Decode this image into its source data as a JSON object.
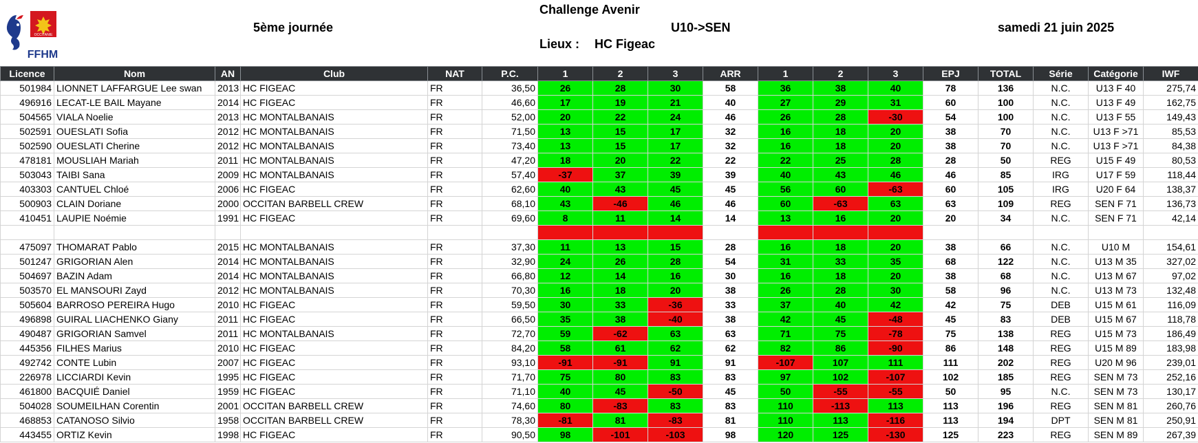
{
  "header": {
    "logo_text": "FFHM",
    "logo_region": "OCCITANIE",
    "title": "Challenge Avenir",
    "session": "5ème journée",
    "age_range": "U10->SEN",
    "date": "samedi 21 juin 2025",
    "place_label": "Lieux :",
    "place_value": "HC Figeac"
  },
  "table": {
    "columns": [
      "Licence",
      "Nom",
      "AN",
      "Club",
      "NAT",
      "P.C.",
      "1",
      "2",
      "3",
      "ARR",
      "1",
      "2",
      "3",
      "EPJ",
      "TOTAL",
      "Série",
      "Catégorie",
      "IWF"
    ],
    "rows": [
      {
        "licence": "501984",
        "nom": "LIONNET LAFFARGUE Lee swan",
        "an": "2013",
        "club": "HC FIGEAC",
        "nat": "FR",
        "pc": "36,50",
        "a1": {
          "v": "26",
          "ok": true
        },
        "a2": {
          "v": "28",
          "ok": true
        },
        "a3": {
          "v": "30",
          "ok": true
        },
        "arr": "58",
        "e1": {
          "v": "36",
          "ok": true
        },
        "e2": {
          "v": "38",
          "ok": true
        },
        "e3": {
          "v": "40",
          "ok": true
        },
        "epj": "78",
        "total": "136",
        "serie": "N.C.",
        "cat": "U13 F 40",
        "iwf": "275,74"
      },
      {
        "licence": "496916",
        "nom": "LECAT-LE BAIL Mayane",
        "an": "2014",
        "club": "HC FIGEAC",
        "nat": "FR",
        "pc": "46,60",
        "a1": {
          "v": "17",
          "ok": true
        },
        "a2": {
          "v": "19",
          "ok": true
        },
        "a3": {
          "v": "21",
          "ok": true
        },
        "arr": "40",
        "e1": {
          "v": "27",
          "ok": true
        },
        "e2": {
          "v": "29",
          "ok": true
        },
        "e3": {
          "v": "31",
          "ok": true
        },
        "epj": "60",
        "total": "100",
        "serie": "N.C.",
        "cat": "U13 F 49",
        "iwf": "162,75"
      },
      {
        "licence": "504565",
        "nom": "VIALA Noelie",
        "an": "2013",
        "club": "HC MONTALBANAIS",
        "nat": "FR",
        "pc": "52,00",
        "a1": {
          "v": "20",
          "ok": true
        },
        "a2": {
          "v": "22",
          "ok": true
        },
        "a3": {
          "v": "24",
          "ok": true
        },
        "arr": "46",
        "e1": {
          "v": "26",
          "ok": true
        },
        "e2": {
          "v": "28",
          "ok": true
        },
        "e3": {
          "v": "-30",
          "ok": false
        },
        "epj": "54",
        "total": "100",
        "serie": "N.C.",
        "cat": "U13 F 55",
        "iwf": "149,43"
      },
      {
        "licence": "502591",
        "nom": "OUESLATI Sofia",
        "an": "2012",
        "club": "HC MONTALBANAIS",
        "nat": "FR",
        "pc": "71,50",
        "a1": {
          "v": "13",
          "ok": true
        },
        "a2": {
          "v": "15",
          "ok": true
        },
        "a3": {
          "v": "17",
          "ok": true
        },
        "arr": "32",
        "e1": {
          "v": "16",
          "ok": true
        },
        "e2": {
          "v": "18",
          "ok": true
        },
        "e3": {
          "v": "20",
          "ok": true
        },
        "epj": "38",
        "total": "70",
        "serie": "N.C.",
        "cat": "U13 F >71",
        "iwf": "85,53"
      },
      {
        "licence": "502590",
        "nom": "OUESLATI Cherine",
        "an": "2012",
        "club": "HC MONTALBANAIS",
        "nat": "FR",
        "pc": "73,40",
        "a1": {
          "v": "13",
          "ok": true
        },
        "a2": {
          "v": "15",
          "ok": true
        },
        "a3": {
          "v": "17",
          "ok": true
        },
        "arr": "32",
        "e1": {
          "v": "16",
          "ok": true
        },
        "e2": {
          "v": "18",
          "ok": true
        },
        "e3": {
          "v": "20",
          "ok": true
        },
        "epj": "38",
        "total": "70",
        "serie": "N.C.",
        "cat": "U13 F >71",
        "iwf": "84,38"
      },
      {
        "licence": "478181",
        "nom": "MOUSLIAH Mariah",
        "an": "2011",
        "club": "HC MONTALBANAIS",
        "nat": "FR",
        "pc": "47,20",
        "a1": {
          "v": "18",
          "ok": true
        },
        "a2": {
          "v": "20",
          "ok": true
        },
        "a3": {
          "v": "22",
          "ok": true
        },
        "arr": "22",
        "e1": {
          "v": "22",
          "ok": true
        },
        "e2": {
          "v": "25",
          "ok": true
        },
        "e3": {
          "v": "28",
          "ok": true
        },
        "epj": "28",
        "total": "50",
        "serie": "REG",
        "cat": "U15 F 49",
        "iwf": "80,53"
      },
      {
        "licence": "503043",
        "nom": "TAIBI Sana",
        "an": "2009",
        "club": "HC MONTALBANAIS",
        "nat": "FR",
        "pc": "57,40",
        "a1": {
          "v": "-37",
          "ok": false
        },
        "a2": {
          "v": "37",
          "ok": true
        },
        "a3": {
          "v": "39",
          "ok": true
        },
        "arr": "39",
        "e1": {
          "v": "40",
          "ok": true
        },
        "e2": {
          "v": "43",
          "ok": true
        },
        "e3": {
          "v": "46",
          "ok": true
        },
        "epj": "46",
        "total": "85",
        "serie": "IRG",
        "cat": "U17 F 59",
        "iwf": "118,44"
      },
      {
        "licence": "403303",
        "nom": "CANTUEL Chloé",
        "an": "2006",
        "club": "HC FIGEAC",
        "nat": "FR",
        "pc": "62,60",
        "a1": {
          "v": "40",
          "ok": true
        },
        "a2": {
          "v": "43",
          "ok": true
        },
        "a3": {
          "v": "45",
          "ok": true
        },
        "arr": "45",
        "e1": {
          "v": "56",
          "ok": true
        },
        "e2": {
          "v": "60",
          "ok": true
        },
        "e3": {
          "v": "-63",
          "ok": false
        },
        "epj": "60",
        "total": "105",
        "serie": "IRG",
        "cat": "U20 F 64",
        "iwf": "138,37"
      },
      {
        "licence": "500903",
        "nom": "CLAIN Doriane",
        "an": "2000",
        "club": "OCCITAN BARBELL CREW",
        "nat": "FR",
        "pc": "68,10",
        "a1": {
          "v": "43",
          "ok": true
        },
        "a2": {
          "v": "-46",
          "ok": false
        },
        "a3": {
          "v": "46",
          "ok": true
        },
        "arr": "46",
        "e1": {
          "v": "60",
          "ok": true
        },
        "e2": {
          "v": "-63",
          "ok": false
        },
        "e3": {
          "v": "63",
          "ok": true
        },
        "epj": "63",
        "total": "109",
        "serie": "REG",
        "cat": "SEN F 71",
        "iwf": "136,73"
      },
      {
        "licence": "410451",
        "nom": "LAUPIE Noémie",
        "an": "1991",
        "club": "HC FIGEAC",
        "nat": "FR",
        "pc": "69,60",
        "a1": {
          "v": "8",
          "ok": true
        },
        "a2": {
          "v": "11",
          "ok": true
        },
        "a3": {
          "v": "14",
          "ok": true
        },
        "arr": "14",
        "e1": {
          "v": "13",
          "ok": true
        },
        "e2": {
          "v": "16",
          "ok": true
        },
        "e3": {
          "v": "20",
          "ok": true
        },
        "epj": "20",
        "total": "34",
        "serie": "N.C.",
        "cat": "SEN F 71",
        "iwf": "42,14"
      },
      {
        "blank": true
      },
      {
        "licence": "475097",
        "nom": "THOMARAT Pablo",
        "an": "2015",
        "club": "HC MONTALBANAIS",
        "nat": "FR",
        "pc": "37,30",
        "a1": {
          "v": "11",
          "ok": true
        },
        "a2": {
          "v": "13",
          "ok": true
        },
        "a3": {
          "v": "15",
          "ok": true
        },
        "arr": "28",
        "e1": {
          "v": "16",
          "ok": true
        },
        "e2": {
          "v": "18",
          "ok": true
        },
        "e3": {
          "v": "20",
          "ok": true
        },
        "epj": "38",
        "total": "66",
        "serie": "N.C.",
        "cat": "U10 M",
        "iwf": "154,61"
      },
      {
        "licence": "501247",
        "nom": "GRIGORIAN Alen",
        "an": "2014",
        "club": "HC MONTALBANAIS",
        "nat": "FR",
        "pc": "32,90",
        "a1": {
          "v": "24",
          "ok": true
        },
        "a2": {
          "v": "26",
          "ok": true
        },
        "a3": {
          "v": "28",
          "ok": true
        },
        "arr": "54",
        "e1": {
          "v": "31",
          "ok": true
        },
        "e2": {
          "v": "33",
          "ok": true
        },
        "e3": {
          "v": "35",
          "ok": true
        },
        "epj": "68",
        "total": "122",
        "serie": "N.C.",
        "cat": "U13 M 35",
        "iwf": "327,02"
      },
      {
        "licence": "504697",
        "nom": "BAZIN Adam",
        "an": "2014",
        "club": "HC MONTALBANAIS",
        "nat": "FR",
        "pc": "66,80",
        "a1": {
          "v": "12",
          "ok": true
        },
        "a2": {
          "v": "14",
          "ok": true
        },
        "a3": {
          "v": "16",
          "ok": true
        },
        "arr": "30",
        "e1": {
          "v": "16",
          "ok": true
        },
        "e2": {
          "v": "18",
          "ok": true
        },
        "e3": {
          "v": "20",
          "ok": true
        },
        "epj": "38",
        "total": "68",
        "serie": "N.C.",
        "cat": "U13 M 67",
        "iwf": "97,02"
      },
      {
        "licence": "503570",
        "nom": "EL MANSOURI Zayd",
        "an": "2012",
        "club": "HC MONTALBANAIS",
        "nat": "FR",
        "pc": "70,30",
        "a1": {
          "v": "16",
          "ok": true
        },
        "a2": {
          "v": "18",
          "ok": true
        },
        "a3": {
          "v": "20",
          "ok": true
        },
        "arr": "38",
        "e1": {
          "v": "26",
          "ok": true
        },
        "e2": {
          "v": "28",
          "ok": true
        },
        "e3": {
          "v": "30",
          "ok": true
        },
        "epj": "58",
        "total": "96",
        "serie": "N.C.",
        "cat": "U13 M 73",
        "iwf": "132,48"
      },
      {
        "licence": "505604",
        "nom": "BARROSO PEREIRA Hugo",
        "an": "2010",
        "club": "HC FIGEAC",
        "nat": "FR",
        "pc": "59,50",
        "a1": {
          "v": "30",
          "ok": true
        },
        "a2": {
          "v": "33",
          "ok": true
        },
        "a3": {
          "v": "-36",
          "ok": false
        },
        "arr": "33",
        "e1": {
          "v": "37",
          "ok": true
        },
        "e2": {
          "v": "40",
          "ok": true
        },
        "e3": {
          "v": "42",
          "ok": true
        },
        "epj": "42",
        "total": "75",
        "serie": "DEB",
        "cat": "U15 M 61",
        "iwf": "116,09"
      },
      {
        "licence": "496898",
        "nom": "GUIRAL LIACHENKO Giany",
        "an": "2011",
        "club": "HC FIGEAC",
        "nat": "FR",
        "pc": "66,50",
        "a1": {
          "v": "35",
          "ok": true
        },
        "a2": {
          "v": "38",
          "ok": true
        },
        "a3": {
          "v": "-40",
          "ok": false
        },
        "arr": "38",
        "e1": {
          "v": "42",
          "ok": true
        },
        "e2": {
          "v": "45",
          "ok": true
        },
        "e3": {
          "v": "-48",
          "ok": false
        },
        "epj": "45",
        "total": "83",
        "serie": "DEB",
        "cat": "U15 M 67",
        "iwf": "118,78"
      },
      {
        "licence": "490487",
        "nom": "GRIGORIAN Samvel",
        "an": "2011",
        "club": "HC MONTALBANAIS",
        "nat": "FR",
        "pc": "72,70",
        "a1": {
          "v": "59",
          "ok": true
        },
        "a2": {
          "v": "-62",
          "ok": false
        },
        "a3": {
          "v": "63",
          "ok": true
        },
        "arr": "63",
        "e1": {
          "v": "71",
          "ok": true
        },
        "e2": {
          "v": "75",
          "ok": true
        },
        "e3": {
          "v": "-78",
          "ok": false
        },
        "epj": "75",
        "total": "138",
        "serie": "REG",
        "cat": "U15 M 73",
        "iwf": "186,49"
      },
      {
        "licence": "445356",
        "nom": "FILHES Marius",
        "an": "2010",
        "club": "HC FIGEAC",
        "nat": "FR",
        "pc": "84,20",
        "a1": {
          "v": "58",
          "ok": true
        },
        "a2": {
          "v": "61",
          "ok": true
        },
        "a3": {
          "v": "62",
          "ok": true
        },
        "arr": "62",
        "e1": {
          "v": "82",
          "ok": true
        },
        "e2": {
          "v": "86",
          "ok": true
        },
        "e3": {
          "v": "-90",
          "ok": false
        },
        "epj": "86",
        "total": "148",
        "serie": "REG",
        "cat": "U15 M 89",
        "iwf": "183,98"
      },
      {
        "licence": "492742",
        "nom": "CONTE Lubin",
        "an": "2007",
        "club": "HC FIGEAC",
        "nat": "FR",
        "pc": "93,10",
        "a1": {
          "v": "-91",
          "ok": false
        },
        "a2": {
          "v": "-91",
          "ok": false
        },
        "a3": {
          "v": "91",
          "ok": true
        },
        "arr": "91",
        "e1": {
          "v": "-107",
          "ok": false
        },
        "e2": {
          "v": "107",
          "ok": true
        },
        "e3": {
          "v": "111",
          "ok": true
        },
        "epj": "111",
        "total": "202",
        "serie": "REG",
        "cat": "U20 M 96",
        "iwf": "239,01"
      },
      {
        "licence": "226978",
        "nom": "LICCIARDI Kevin",
        "an": "1995",
        "club": "HC FIGEAC",
        "nat": "FR",
        "pc": "71,70",
        "a1": {
          "v": "75",
          "ok": true
        },
        "a2": {
          "v": "80",
          "ok": true
        },
        "a3": {
          "v": "83",
          "ok": true
        },
        "arr": "83",
        "e1": {
          "v": "97",
          "ok": true
        },
        "e2": {
          "v": "102",
          "ok": true
        },
        "e3": {
          "v": "-107",
          "ok": false
        },
        "epj": "102",
        "total": "185",
        "serie": "REG",
        "cat": "SEN M 73",
        "iwf": "252,16"
      },
      {
        "licence": "461800",
        "nom": "BACQUIÉ Daniel",
        "an": "1959",
        "club": "HC FIGEAC",
        "nat": "FR",
        "pc": "71,10",
        "a1": {
          "v": "40",
          "ok": true
        },
        "a2": {
          "v": "45",
          "ok": true
        },
        "a3": {
          "v": "-50",
          "ok": false
        },
        "arr": "45",
        "e1": {
          "v": "50",
          "ok": true
        },
        "e2": {
          "v": "-55",
          "ok": false
        },
        "e3": {
          "v": "-55",
          "ok": false
        },
        "epj": "50",
        "total": "95",
        "serie": "N.C.",
        "cat": "SEN M 73",
        "iwf": "130,17"
      },
      {
        "licence": "504028",
        "nom": "SOUMEILHAN Corentin",
        "an": "2001",
        "club": "OCCITAN BARBELL CREW",
        "nat": "FR",
        "pc": "74,60",
        "a1": {
          "v": "80",
          "ok": true
        },
        "a2": {
          "v": "-83",
          "ok": false
        },
        "a3": {
          "v": "83",
          "ok": true
        },
        "arr": "83",
        "e1": {
          "v": "110",
          "ok": true
        },
        "e2": {
          "v": "-113",
          "ok": false
        },
        "e3": {
          "v": "113",
          "ok": true
        },
        "epj": "113",
        "total": "196",
        "serie": "REG",
        "cat": "SEN M 81",
        "iwf": "260,76"
      },
      {
        "licence": "468853",
        "nom": "CATANOSO Silvio",
        "an": "1958",
        "club": "OCCITAN BARBELL CREW",
        "nat": "FR",
        "pc": "78,30",
        "a1": {
          "v": "-81",
          "ok": false
        },
        "a2": {
          "v": "81",
          "ok": true
        },
        "a3": {
          "v": "-83",
          "ok": false
        },
        "arr": "81",
        "e1": {
          "v": "110",
          "ok": true
        },
        "e2": {
          "v": "113",
          "ok": true
        },
        "e3": {
          "v": "-116",
          "ok": false
        },
        "epj": "113",
        "total": "194",
        "serie": "DPT",
        "cat": "SEN M 81",
        "iwf": "250,91"
      },
      {
        "licence": "443455",
        "nom": "ORTIZ Kevin",
        "an": "1998",
        "club": "HC FIGEAC",
        "nat": "FR",
        "pc": "90,50",
        "a1": {
          "v": "98",
          "ok": true
        },
        "a2": {
          "v": "-101",
          "ok": false
        },
        "a3": {
          "v": "-103",
          "ok": false
        },
        "arr": "98",
        "e1": {
          "v": "120",
          "ok": true
        },
        "e2": {
          "v": "125",
          "ok": true
        },
        "e3": {
          "v": "-130",
          "ok": false
        },
        "epj": "125",
        "total": "223",
        "serie": "REG",
        "cat": "SEN M 89",
        "iwf": "267,39"
      }
    ]
  }
}
